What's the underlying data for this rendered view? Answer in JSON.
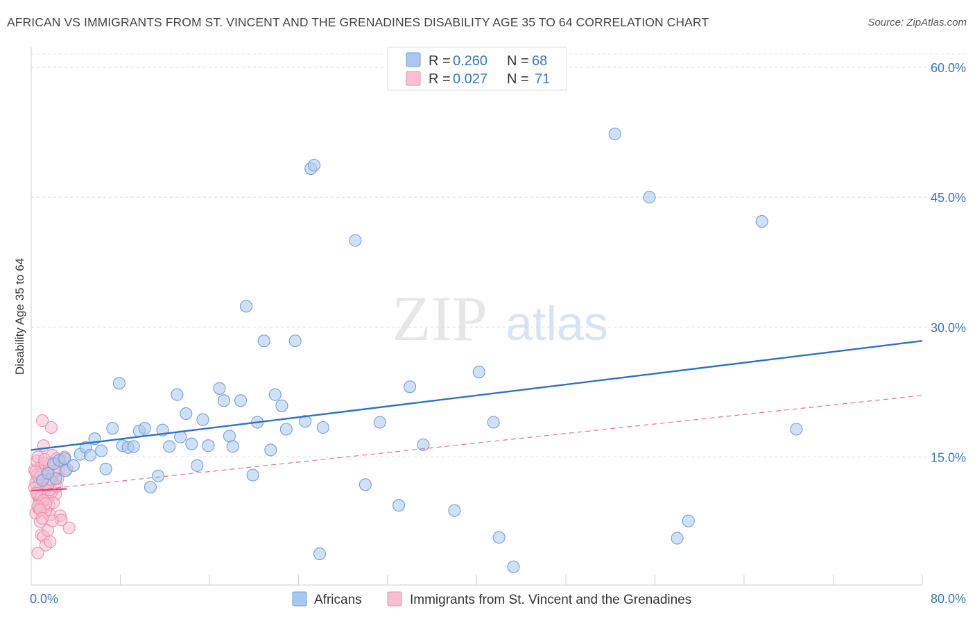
{
  "title": "AFRICAN VS IMMIGRANTS FROM ST. VINCENT AND THE GRENADINES DISABILITY AGE 35 TO 64 CORRELATION CHART",
  "source": "Source: ZipAtlas.com",
  "watermark": {
    "zip": "ZIP",
    "atlas": "atlas"
  },
  "legend": {
    "rows": [
      {
        "r_label": "R = ",
        "r_value": "0.260",
        "n_label": "N = ",
        "n_value": "68",
        "color": "#a9c8f0",
        "stroke": "#6f9fdc"
      },
      {
        "r_label": "R = ",
        "r_value": "0.027",
        "n_label": "N = ",
        "n_value": "71",
        "color": "#f8bfd0",
        "stroke": "#ec8fac"
      }
    ]
  },
  "bottom_legend": [
    {
      "label": "Africans",
      "color": "#a9c8f0",
      "stroke": "#6f9fdc"
    },
    {
      "label": "Immigrants from St. Vincent and the Grenadines",
      "color": "#f8bfd0",
      "stroke": "#ec8fac"
    }
  ],
  "chart_data": {
    "type": "scatter",
    "title": "AFRICAN VS IMMIGRANTS FROM ST. VINCENT AND THE GRENADINES DISABILITY AGE 35 TO 64 CORRELATION CHART",
    "xlabel": "",
    "ylabel": "Disability Age 35 to 64",
    "xlim": [
      0,
      80
    ],
    "ylim": [
      0,
      60
    ],
    "x_tick_labels": [
      "0.0%",
      "80.0%"
    ],
    "y_ticks": [
      15,
      30,
      45,
      60
    ],
    "y_tick_labels": [
      "15.0%",
      "30.0%",
      "45.0%",
      "60.0%"
    ],
    "grid": "horizontal dashed",
    "legend_position": "top-center",
    "series": [
      {
        "name": "Africans",
        "color": "#6f9fdc",
        "fill": "#a9c8f0",
        "trend": {
          "x": [
            0,
            80
          ],
          "y": [
            15.8,
            28.4
          ]
        },
        "points": [
          [
            1.0,
            12.3
          ],
          [
            2.0,
            14.2
          ],
          [
            2.5,
            14.6
          ],
          [
            3.1,
            13.4
          ],
          [
            3.8,
            14.0
          ],
          [
            4.4,
            15.3
          ],
          [
            4.9,
            16.1
          ],
          [
            5.3,
            15.2
          ],
          [
            5.7,
            17.1
          ],
          [
            6.3,
            15.7
          ],
          [
            6.7,
            13.6
          ],
          [
            7.3,
            18.3
          ],
          [
            7.9,
            23.5
          ],
          [
            8.2,
            16.3
          ],
          [
            8.7,
            16.1
          ],
          [
            9.2,
            16.2
          ],
          [
            9.7,
            18.0
          ],
          [
            10.2,
            18.3
          ],
          [
            10.7,
            11.5
          ],
          [
            11.4,
            12.8
          ],
          [
            11.8,
            18.1
          ],
          [
            12.4,
            16.2
          ],
          [
            13.1,
            22.2
          ],
          [
            13.4,
            17.3
          ],
          [
            13.9,
            20.0
          ],
          [
            14.4,
            16.5
          ],
          [
            14.9,
            14.0
          ],
          [
            15.4,
            19.3
          ],
          [
            15.9,
            16.3
          ],
          [
            16.9,
            22.9
          ],
          [
            17.3,
            21.5
          ],
          [
            17.8,
            17.4
          ],
          [
            18.1,
            16.2
          ],
          [
            18.8,
            21.5
          ],
          [
            19.3,
            32.4
          ],
          [
            19.9,
            12.9
          ],
          [
            20.3,
            19.0
          ],
          [
            20.9,
            28.4
          ],
          [
            21.5,
            15.8
          ],
          [
            21.9,
            22.2
          ],
          [
            22.5,
            20.9
          ],
          [
            22.9,
            18.2
          ],
          [
            23.7,
            28.4
          ],
          [
            24.6,
            19.1
          ],
          [
            25.1,
            48.3
          ],
          [
            25.4,
            48.7
          ],
          [
            25.9,
            3.8
          ],
          [
            26.2,
            18.4
          ],
          [
            29.1,
            40.0
          ],
          [
            30.0,
            11.8
          ],
          [
            31.3,
            19.0
          ],
          [
            33.0,
            9.4
          ],
          [
            34.0,
            23.1
          ],
          [
            35.2,
            16.4
          ],
          [
            38.0,
            8.8
          ],
          [
            40.2,
            24.8
          ],
          [
            41.5,
            19.0
          ],
          [
            42.0,
            5.7
          ],
          [
            43.3,
            2.3
          ],
          [
            52.4,
            52.3
          ],
          [
            55.5,
            45.0
          ],
          [
            58.0,
            5.6
          ],
          [
            59.0,
            7.6
          ],
          [
            65.6,
            42.2
          ],
          [
            68.7,
            18.2
          ],
          [
            2.2,
            12.5
          ],
          [
            3.0,
            14.8
          ],
          [
            1.5,
            13.1
          ]
        ]
      },
      {
        "name": "Immigrants from St. Vincent and the Grenadines",
        "color": "#ec8fac",
        "fill": "#f8bfd0",
        "trend": {
          "x": [
            0,
            80
          ],
          "y": [
            11.1,
            22.1
          ]
        },
        "points": [
          [
            0.3,
            13.5
          ],
          [
            0.4,
            12.0
          ],
          [
            0.5,
            11.0
          ],
          [
            0.6,
            10.5
          ],
          [
            0.7,
            9.8
          ],
          [
            0.8,
            12.8
          ],
          [
            0.9,
            13.9
          ],
          [
            0.5,
            14.5
          ],
          [
            0.6,
            15.0
          ],
          [
            0.4,
            8.5
          ],
          [
            0.7,
            9.0
          ],
          [
            0.8,
            7.5
          ],
          [
            0.9,
            6.0
          ],
          [
            1.0,
            19.2
          ],
          [
            1.1,
            16.3
          ],
          [
            1.2,
            14.3
          ],
          [
            1.3,
            12.2
          ],
          [
            1.4,
            11.5
          ],
          [
            1.5,
            10.1
          ],
          [
            1.6,
            9.4
          ],
          [
            1.7,
            8.3
          ],
          [
            1.8,
            18.4
          ],
          [
            1.9,
            15.2
          ],
          [
            2.0,
            13.1
          ],
          [
            2.1,
            11.8
          ],
          [
            2.2,
            10.7
          ],
          [
            2.3,
            14.8
          ],
          [
            2.4,
            12.5
          ],
          [
            2.5,
            13.7
          ],
          [
            2.6,
            8.2
          ],
          [
            2.7,
            7.7
          ],
          [
            2.8,
            14.5
          ],
          [
            3.0,
            15.0
          ],
          [
            3.2,
            13.6
          ],
          [
            3.4,
            6.8
          ],
          [
            1.1,
            5.8
          ],
          [
            1.3,
            4.8
          ],
          [
            1.5,
            6.5
          ],
          [
            1.7,
            5.2
          ],
          [
            1.9,
            7.6
          ],
          [
            0.6,
            3.9
          ],
          [
            0.8,
            10.2
          ],
          [
            1.0,
            11.3
          ],
          [
            1.2,
            12.7
          ],
          [
            1.4,
            13.2
          ],
          [
            1.6,
            14.1
          ],
          [
            1.8,
            10.9
          ],
          [
            2.0,
            9.7
          ],
          [
            0.5,
            12.9
          ],
          [
            0.7,
            11.9
          ],
          [
            0.9,
            10.4
          ],
          [
            1.1,
            9.1
          ],
          [
            1.3,
            8.8
          ],
          [
            1.5,
            12.1
          ],
          [
            1.7,
            11.2
          ],
          [
            1.9,
            12.3
          ],
          [
            2.1,
            13.4
          ],
          [
            2.3,
            11.6
          ],
          [
            0.3,
            11.4
          ],
          [
            0.5,
            10.8
          ],
          [
            0.7,
            12.6
          ],
          [
            0.9,
            13.0
          ],
          [
            1.1,
            10.0
          ],
          [
            1.3,
            9.6
          ],
          [
            1.5,
            11.7
          ],
          [
            1.7,
            12.4
          ],
          [
            0.4,
            13.3
          ],
          [
            0.6,
            9.3
          ],
          [
            0.8,
            8.9
          ],
          [
            1.0,
            7.9
          ],
          [
            1.2,
            14.7
          ]
        ]
      }
    ]
  }
}
